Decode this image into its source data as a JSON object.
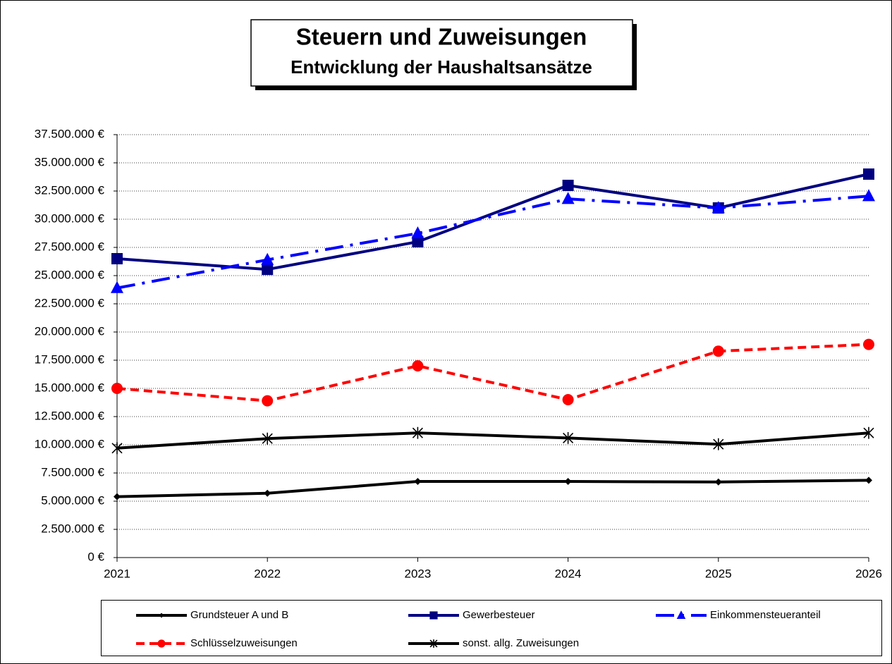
{
  "chart_data": {
    "type": "line",
    "title": "Steuern und Zuweisungen",
    "subtitle": "Entwicklung der Haushaltsansätze",
    "categories": [
      "2021",
      "2022",
      "2023",
      "2024",
      "2025",
      "2026"
    ],
    "series": [
      {
        "name": "Grundsteuer A und B",
        "color": "#000000",
        "line_style": "solid",
        "marker": "diamond",
        "values": [
          5400000,
          5700000,
          6750000,
          6750000,
          6700000,
          6850000
        ]
      },
      {
        "name": "Gewerbesteuer",
        "color": "#000080",
        "line_style": "solid",
        "marker": "square",
        "values": [
          26500000,
          25550000,
          28000000,
          33000000,
          31000000,
          34000000
        ]
      },
      {
        "name": "Einkommensteueranteil",
        "color": "#0000ff",
        "line_style": "dashdot",
        "marker": "triangle",
        "values": [
          23900000,
          26400000,
          28750000,
          31800000,
          31000000,
          32050000
        ]
      },
      {
        "name": "Schlüsselzuweisungen",
        "color": "#ff0000",
        "line_style": "dashed",
        "marker": "circle",
        "values": [
          15000000,
          13900000,
          17000000,
          14000000,
          18300000,
          18900000
        ]
      },
      {
        "name": "sonst. allg. Zuweisungen",
        "color": "#000000",
        "line_style": "solid",
        "marker": "asterisk",
        "values": [
          9700000,
          10550000,
          11050000,
          10600000,
          10050000,
          11050000
        ]
      }
    ],
    "ylim": [
      0,
      37500000
    ],
    "yticks": [
      {
        "value": 0,
        "label": "0 €"
      },
      {
        "value": 2500000,
        "label": "2.500.000 €"
      },
      {
        "value": 5000000,
        "label": "5.000.000 €"
      },
      {
        "value": 7500000,
        "label": "7.500.000 €"
      },
      {
        "value": 10000000,
        "label": "10.000.000 €"
      },
      {
        "value": 12500000,
        "label": "12.500.000 €"
      },
      {
        "value": 15000000,
        "label": "15.000.000 €"
      },
      {
        "value": 17500000,
        "label": "17.500.000 €"
      },
      {
        "value": 20000000,
        "label": "20.000.000 €"
      },
      {
        "value": 22500000,
        "label": "22.500.000 €"
      },
      {
        "value": 25000000,
        "label": "25.000.000 €"
      },
      {
        "value": 27500000,
        "label": "27.500.000 €"
      },
      {
        "value": 30000000,
        "label": "30.000.000 €"
      },
      {
        "value": 32500000,
        "label": "32.500.000 €"
      },
      {
        "value": 35000000,
        "label": "35.000.000 €"
      },
      {
        "value": 37500000,
        "label": "37.500.000 €"
      }
    ],
    "grid": true,
    "legend": "bottom"
  }
}
